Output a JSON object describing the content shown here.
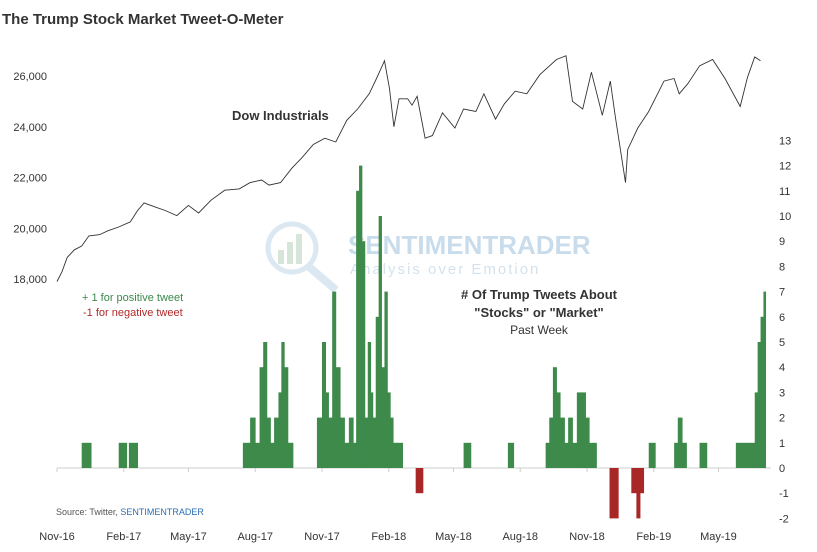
{
  "chart_data": {
    "type": "line+bar",
    "title": "The Trump Stock Market Tweet-O-Meter",
    "x_tick_labels": [
      "Nov-16",
      "Feb-17",
      "May-17",
      "Aug-17",
      "Nov-17",
      "Feb-18",
      "May-18",
      "Aug-18",
      "Nov-18",
      "Feb-19",
      "May-19"
    ],
    "x_range": [
      "2016-11-01",
      "2019-06-30"
    ],
    "left_axis": {
      "ticks": [
        "18,000",
        "20,000",
        "22,000",
        "24,000",
        "26,000"
      ],
      "range": [
        17500,
        26700
      ]
    },
    "right_axis": {
      "ticks": [
        -2,
        -1,
        0,
        1,
        2,
        3,
        4,
        5,
        6,
        7,
        8,
        9,
        10,
        11,
        12,
        13
      ],
      "range": [
        -2,
        13.5
      ]
    },
    "series": [
      {
        "name": "Dow Industrials",
        "type": "line",
        "axis": "left",
        "color": "#333333",
        "points": [
          [
            "2016-11-01",
            17900
          ],
          [
            "2016-11-08",
            18300
          ],
          [
            "2016-11-15",
            18850
          ],
          [
            "2016-11-25",
            19150
          ],
          [
            "2016-12-05",
            19300
          ],
          [
            "2016-12-15",
            19700
          ],
          [
            "2016-12-30",
            19750
          ],
          [
            "2017-01-10",
            19900
          ],
          [
            "2017-01-25",
            20050
          ],
          [
            "2017-02-10",
            20250
          ],
          [
            "2017-02-20",
            20700
          ],
          [
            "2017-03-01",
            21000
          ],
          [
            "2017-03-15",
            20850
          ],
          [
            "2017-03-30",
            20700
          ],
          [
            "2017-04-15",
            20500
          ],
          [
            "2017-05-01",
            20900
          ],
          [
            "2017-05-15",
            20600
          ],
          [
            "2017-06-01",
            21100
          ],
          [
            "2017-06-20",
            21500
          ],
          [
            "2017-07-10",
            21550
          ],
          [
            "2017-07-25",
            21800
          ],
          [
            "2017-08-10",
            21900
          ],
          [
            "2017-08-20",
            21700
          ],
          [
            "2017-09-05",
            21800
          ],
          [
            "2017-09-20",
            22350
          ],
          [
            "2017-10-05",
            22800
          ],
          [
            "2017-10-20",
            23300
          ],
          [
            "2017-11-05",
            23550
          ],
          [
            "2017-11-20",
            23400
          ],
          [
            "2017-12-05",
            24250
          ],
          [
            "2017-12-20",
            24700
          ],
          [
            "2018-01-05",
            25300
          ],
          [
            "2018-01-15",
            25900
          ],
          [
            "2018-01-26",
            26600
          ],
          [
            "2018-02-02",
            25500
          ],
          [
            "2018-02-08",
            24000
          ],
          [
            "2018-02-15",
            25100
          ],
          [
            "2018-02-27",
            25100
          ],
          [
            "2018-03-05",
            24850
          ],
          [
            "2018-03-12",
            25200
          ],
          [
            "2018-03-23",
            23550
          ],
          [
            "2018-04-02",
            23650
          ],
          [
            "2018-04-16",
            24550
          ],
          [
            "2018-05-03",
            23950
          ],
          [
            "2018-05-15",
            24700
          ],
          [
            "2018-06-01",
            24600
          ],
          [
            "2018-06-12",
            25300
          ],
          [
            "2018-06-28",
            24300
          ],
          [
            "2018-07-10",
            24900
          ],
          [
            "2018-07-25",
            25400
          ],
          [
            "2018-08-10",
            25300
          ],
          [
            "2018-08-28",
            26050
          ],
          [
            "2018-09-20",
            26650
          ],
          [
            "2018-10-03",
            26800
          ],
          [
            "2018-10-12",
            25000
          ],
          [
            "2018-10-26",
            24700
          ],
          [
            "2018-11-07",
            26150
          ],
          [
            "2018-11-22",
            24450
          ],
          [
            "2018-12-03",
            25800
          ],
          [
            "2018-12-10",
            24400
          ],
          [
            "2018-12-24",
            21800
          ],
          [
            "2018-12-27",
            23100
          ],
          [
            "2019-01-10",
            23950
          ],
          [
            "2019-01-25",
            24600
          ],
          [
            "2019-02-15",
            25800
          ],
          [
            "2019-03-01",
            25900
          ],
          [
            "2019-03-08",
            25300
          ],
          [
            "2019-03-20",
            25700
          ],
          [
            "2019-04-05",
            26400
          ],
          [
            "2019-04-23",
            26650
          ],
          [
            "2019-05-10",
            25900
          ],
          [
            "2019-05-31",
            24800
          ],
          [
            "2019-06-10",
            25950
          ],
          [
            "2019-06-20",
            26750
          ],
          [
            "2019-06-28",
            26600
          ]
        ]
      },
      {
        "name": "# Of Trump Tweets About \"Stocks\" or \"Market\" Past Week",
        "type": "bar",
        "axis": "right",
        "positive_color": "#3d8a4b",
        "negative_color": "#a82828",
        "segments": [
          [
            "2016-12-05",
            "2016-12-18",
            1
          ],
          [
            "2017-01-25",
            "2017-02-05",
            1
          ],
          [
            "2017-02-08",
            "2017-02-20",
            1
          ],
          [
            "2017-07-15",
            "2017-07-25",
            1
          ],
          [
            "2017-07-25",
            "2017-08-01",
            2
          ],
          [
            "2017-08-01",
            "2017-08-07",
            1
          ],
          [
            "2017-08-07",
            "2017-08-12",
            4
          ],
          [
            "2017-08-12",
            "2017-08-17",
            5
          ],
          [
            "2017-08-17",
            "2017-08-22",
            2
          ],
          [
            "2017-08-22",
            "2017-08-27",
            1
          ],
          [
            "2017-08-27",
            "2017-09-02",
            2
          ],
          [
            "2017-09-02",
            "2017-09-06",
            3
          ],
          [
            "2017-09-06",
            "2017-09-10",
            5
          ],
          [
            "2017-09-10",
            "2017-09-15",
            4
          ],
          [
            "2017-09-15",
            "2017-09-22",
            1
          ],
          [
            "2017-10-25",
            "2017-11-01",
            2
          ],
          [
            "2017-11-01",
            "2017-11-06",
            5
          ],
          [
            "2017-11-06",
            "2017-11-10",
            3
          ],
          [
            "2017-11-10",
            "2017-11-15",
            2
          ],
          [
            "2017-11-15",
            "2017-11-20",
            7
          ],
          [
            "2017-11-20",
            "2017-11-26",
            4
          ],
          [
            "2017-11-26",
            "2017-12-02",
            2
          ],
          [
            "2017-12-02",
            "2017-12-08",
            1
          ],
          [
            "2017-12-08",
            "2017-12-14",
            2
          ],
          [
            "2017-12-14",
            "2017-12-18",
            1
          ],
          [
            "2017-12-18",
            "2017-12-22",
            11
          ],
          [
            "2017-12-22",
            "2017-12-26",
            12
          ],
          [
            "2017-12-26",
            "2017-12-30",
            9
          ],
          [
            "2017-12-30",
            "2018-01-03",
            2
          ],
          [
            "2018-01-03",
            "2018-01-07",
            5
          ],
          [
            "2018-01-07",
            "2018-01-10",
            3
          ],
          [
            "2018-01-10",
            "2018-01-14",
            2
          ],
          [
            "2018-01-14",
            "2018-01-18",
            6
          ],
          [
            "2018-01-18",
            "2018-01-22",
            10
          ],
          [
            "2018-01-22",
            "2018-01-26",
            4
          ],
          [
            "2018-01-26",
            "2018-01-30",
            7
          ],
          [
            "2018-01-30",
            "2018-02-03",
            3
          ],
          [
            "2018-02-03",
            "2018-02-07",
            2
          ],
          [
            "2018-02-07",
            "2018-02-11",
            1
          ],
          [
            "2018-02-11",
            "2018-02-20",
            1
          ],
          [
            "2018-03-10",
            "2018-03-20",
            -1
          ],
          [
            "2018-05-15",
            "2018-05-25",
            1
          ],
          [
            "2018-07-15",
            "2018-07-23",
            1
          ],
          [
            "2018-09-05",
            "2018-09-10",
            1
          ],
          [
            "2018-09-10",
            "2018-09-15",
            2
          ],
          [
            "2018-09-15",
            "2018-09-20",
            4
          ],
          [
            "2018-09-20",
            "2018-09-25",
            3
          ],
          [
            "2018-09-25",
            "2018-10-01",
            2
          ],
          [
            "2018-10-01",
            "2018-10-06",
            1
          ],
          [
            "2018-10-06",
            "2018-10-12",
            2
          ],
          [
            "2018-10-12",
            "2018-10-18",
            1
          ],
          [
            "2018-10-18",
            "2018-10-24",
            3
          ],
          [
            "2018-10-24",
            "2018-10-30",
            3
          ],
          [
            "2018-10-30",
            "2018-11-04",
            2
          ],
          [
            "2018-11-04",
            "2018-11-10",
            1
          ],
          [
            "2018-11-10",
            "2018-11-14",
            1
          ],
          [
            "2018-12-02",
            "2018-12-14",
            -2
          ],
          [
            "2019-01-01",
            "2019-01-08",
            -1
          ],
          [
            "2019-01-08",
            "2019-01-13",
            -2
          ],
          [
            "2019-01-13",
            "2019-01-18",
            -1
          ],
          [
            "2019-01-25",
            "2019-02-03",
            1
          ],
          [
            "2019-03-01",
            "2019-03-06",
            1
          ],
          [
            "2019-03-06",
            "2019-03-12",
            2
          ],
          [
            "2019-03-12",
            "2019-03-18",
            1
          ],
          [
            "2019-04-05",
            "2019-04-15",
            1
          ],
          [
            "2019-05-25",
            "2019-06-20",
            1
          ],
          [
            "2019-06-20",
            "2019-06-24",
            3
          ],
          [
            "2019-06-24",
            "2019-06-28",
            5
          ],
          [
            "2019-06-28",
            "2019-07-02",
            6
          ],
          [
            "2019-07-02",
            "2019-07-05",
            7
          ]
        ]
      }
    ],
    "annotations": {
      "line_label": "Dow Industrials",
      "bar_label_line1": "# Of Trump Tweets About",
      "bar_label_line2": "\"Stocks\" or \"Market\"",
      "bar_label_line3": "Past Week",
      "legend_positive": "+ 1 for positive tweet",
      "legend_negative": "-1 for negative tweet",
      "source_prefix": "Source:  Twitter, ",
      "source_brand": "SENTIMENTRADER",
      "watermark_main": "SENTIMENTRADER",
      "watermark_sub": "Analysis over Emotion"
    },
    "grid": false
  }
}
